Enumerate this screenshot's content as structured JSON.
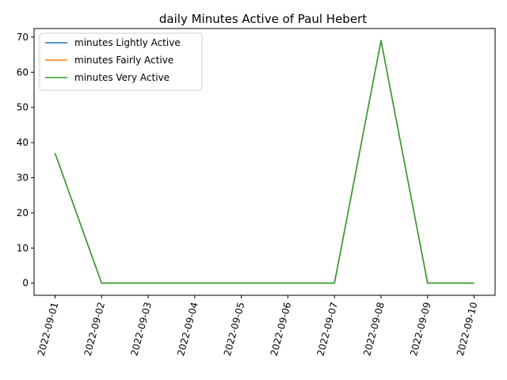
{
  "chart_data": {
    "type": "line",
    "title": "daily Minutes Active of Paul Hebert",
    "xlabel": "",
    "ylabel": "",
    "x": [
      "2022-09-01",
      "2022-09-02",
      "2022-09-03",
      "2022-09-04",
      "2022-09-05",
      "2022-09-06",
      "2022-09-07",
      "2022-09-08",
      "2022-09-09",
      "2022-09-10"
    ],
    "yticks": [
      0,
      10,
      20,
      30,
      40,
      50,
      60,
      70
    ],
    "ylim": [
      -3.45,
      72.45
    ],
    "grid": false,
    "legend_position": "top-left",
    "series": [
      {
        "name": "minutes Lightly Active",
        "color": "#1f77b4",
        "values": [
          37,
          0,
          0,
          0,
          0,
          0,
          0,
          69,
          0,
          0
        ]
      },
      {
        "name": "minutes Fairly Active",
        "color": "#ff7f0e",
        "values": [
          37,
          0,
          0,
          0,
          0,
          0,
          0,
          69,
          0,
          0
        ]
      },
      {
        "name": "minutes Very Active",
        "color": "#2ca02c",
        "values": [
          37,
          0,
          0,
          0,
          0,
          0,
          0,
          69,
          0,
          0
        ]
      }
    ]
  }
}
